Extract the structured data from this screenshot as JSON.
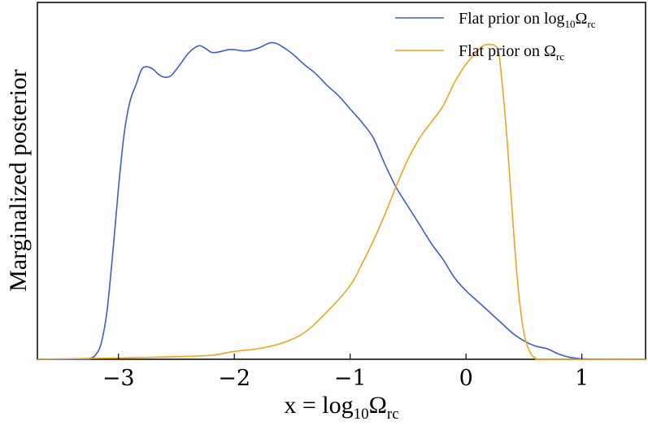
{
  "chart_data": {
    "type": "line",
    "title": "",
    "xlabel": {
      "base": "x = log",
      "sub": "10",
      "omega": "Ω",
      "omega_sub": "rc"
    },
    "ylabel": "Marginalized posterior",
    "xlim": [
      -3.7,
      1.55
    ],
    "ylim": [
      0,
      1.2
    ],
    "x_ticks": [
      -3,
      -2,
      -1,
      0,
      1
    ],
    "x_tick_labels": [
      "−3",
      "−2",
      "−1",
      "0",
      "1"
    ],
    "y_ticks_shown": false,
    "grid": false,
    "legend_position": "top-right",
    "series": [
      {
        "name": "Flat prior on log10Ωrc",
        "legend": {
          "pre": "Flat prior on log",
          "sub": "10",
          "omega": "Ω",
          "omega_sub": "rc"
        },
        "color": "#3a5fcd",
        "x": [
          -3.7,
          -3.3,
          -3.25,
          -3.2,
          -3.15,
          -3.1,
          -3.05,
          -3.0,
          -2.95,
          -2.9,
          -2.85,
          -2.8,
          -2.75,
          -2.7,
          -2.65,
          -2.6,
          -2.55,
          -2.5,
          -2.45,
          -2.4,
          -2.35,
          -2.3,
          -2.25,
          -2.2,
          -2.15,
          -2.1,
          -2.05,
          -2.0,
          -1.9,
          -1.8,
          -1.7,
          -1.65,
          -1.6,
          -1.5,
          -1.4,
          -1.3,
          -1.2,
          -1.1,
          -1.0,
          -0.9,
          -0.8,
          -0.7,
          -0.6,
          -0.5,
          -0.4,
          -0.3,
          -0.2,
          -0.1,
          0.0,
          0.1,
          0.2,
          0.3,
          0.4,
          0.5,
          0.6,
          0.7,
          0.8,
          0.9,
          1.0,
          1.1,
          1.2,
          1.55
        ],
        "y": [
          0.0,
          0.0,
          0.003,
          0.015,
          0.06,
          0.18,
          0.4,
          0.65,
          0.86,
          0.98,
          1.04,
          1.1,
          1.11,
          1.1,
          1.08,
          1.07,
          1.075,
          1.1,
          1.13,
          1.16,
          1.18,
          1.19,
          1.18,
          1.165,
          1.165,
          1.17,
          1.175,
          1.175,
          1.17,
          1.18,
          1.2,
          1.2,
          1.19,
          1.16,
          1.12,
          1.085,
          1.04,
          1.0,
          0.95,
          0.9,
          0.84,
          0.74,
          0.65,
          0.58,
          0.51,
          0.44,
          0.38,
          0.31,
          0.26,
          0.22,
          0.18,
          0.14,
          0.1,
          0.07,
          0.05,
          0.04,
          0.02,
          0.007,
          0.002,
          0.0,
          0.0,
          0.0
        ]
      },
      {
        "name": "Flat prior on Ωrc",
        "legend": {
          "pre": "Flat prior on ",
          "sub": "",
          "omega": "Ω",
          "omega_sub": "rc"
        },
        "color": "#f4a31e",
        "x": [
          -3.7,
          -3.0,
          -2.5,
          -2.2,
          -2.0,
          -1.8,
          -1.6,
          -1.4,
          -1.2,
          -1.0,
          -0.9,
          -0.8,
          -0.7,
          -0.6,
          -0.5,
          -0.4,
          -0.3,
          -0.2,
          -0.1,
          0.0,
          0.1,
          0.15,
          0.2,
          0.25,
          0.28,
          0.3,
          0.35,
          0.4,
          0.45,
          0.5,
          0.55,
          0.6,
          0.7,
          1.55
        ],
        "y": [
          0.0,
          0.005,
          0.01,
          0.015,
          0.03,
          0.04,
          0.06,
          0.1,
          0.18,
          0.28,
          0.36,
          0.45,
          0.55,
          0.66,
          0.76,
          0.84,
          0.9,
          0.96,
          1.05,
          1.12,
          1.17,
          1.19,
          1.195,
          1.19,
          1.17,
          1.1,
          0.86,
          0.55,
          0.27,
          0.1,
          0.03,
          0.005,
          0.0,
          0.0
        ]
      }
    ]
  }
}
